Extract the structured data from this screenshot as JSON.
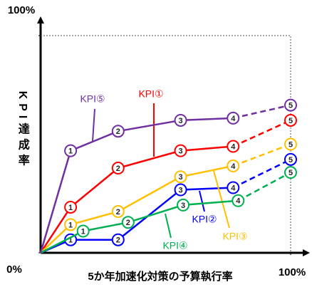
{
  "chart_data": {
    "type": "line",
    "xlabel": "5か年加速化対策の予算執行率",
    "ylabel": "KPI達成率",
    "xlim": [
      0,
      100
    ],
    "ylim": [
      0,
      100
    ],
    "xticks": [
      {
        "value": 100,
        "label": "100%"
      }
    ],
    "yticks": [
      {
        "value": 0,
        "label": "0%"
      },
      {
        "value": 100,
        "label": "100%"
      }
    ],
    "point_labels": [
      "1",
      "2",
      "3",
      "4",
      "5"
    ],
    "dashed_last_segment": true,
    "series": [
      {
        "name": "KPI①",
        "color": "#ff0000",
        "x": [
          0,
          12,
          31,
          56,
          77,
          100
        ],
        "values": [
          0,
          21,
          39,
          47,
          49,
          61
        ]
      },
      {
        "name": "KPI②",
        "color": "#0000ff",
        "x": [
          0,
          12,
          31,
          56,
          77,
          100
        ],
        "values": [
          0,
          6,
          6,
          29,
          30,
          43
        ]
      },
      {
        "name": "KPI③",
        "color": "#ffc000",
        "x": [
          0,
          12,
          31,
          56,
          77,
          100
        ],
        "values": [
          0,
          13,
          19,
          35,
          40,
          50
        ]
      },
      {
        "name": "KPI④",
        "color": "#00b050",
        "x": [
          0,
          17,
          35,
          57,
          79,
          100
        ],
        "values": [
          0,
          10,
          14,
          22,
          24,
          37
        ]
      },
      {
        "name": "KPI⑤",
        "color": "#7030a0",
        "x": [
          0,
          12,
          31,
          56,
          77,
          100
        ],
        "values": [
          0,
          47,
          56,
          61,
          62,
          68
        ]
      }
    ]
  }
}
